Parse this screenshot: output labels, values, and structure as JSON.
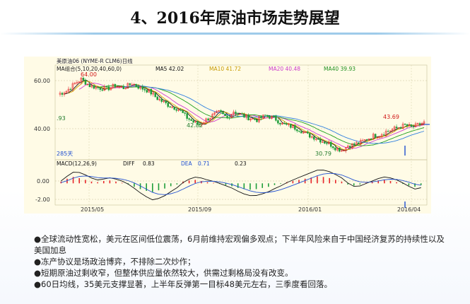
{
  "slide": {
    "title": "4、2016年原油市场走势展望"
  },
  "chart": {
    "instrument_label": "美原油06 (NYME-R CLM6)日线",
    "ma_label": "MA组合(5,10,20,40,60,0)",
    "ma5": "MA5 42.02",
    "ma10": "MA10 41.72",
    "ma20": "MA20 40.48",
    "ma40": "MA40 39.93",
    "macd_label": "MACD(12,26,9)",
    "diff_label": "DIFF",
    "diff_value": "0.83",
    "dea_label": "DEA",
    "dea_value": "0.71",
    "macd_value": "0.23",
    "volume_label": "285天",
    "annotations": {
      "high": "64.00",
      "low_mid": "42.82",
      "low": "30.79",
      "recent": "43.69",
      "left": ".93"
    },
    "colors": {
      "up": "#e8262a",
      "down": "#1f9e3a",
      "ma5": "#111111",
      "ma10": "#d4a200",
      "ma20": "#d13fd1",
      "ma40": "#20a020",
      "ma60": "#3080e0"
    }
  },
  "chart_data": {
    "type": "candlestick",
    "price_axis": {
      "ticks": [
        "60.00",
        "40.00"
      ],
      "range": [
        27,
        70
      ]
    },
    "macd_axis": {
      "ticks": [
        "0.00",
        "-2.00"
      ],
      "range": [
        -3.5,
        2.6
      ]
    },
    "x_ticks": [
      "2015/05",
      "2015/09",
      "2016/01",
      "2016/04"
    ],
    "price_path": [
      [
        0,
        57
      ],
      [
        8,
        58.5
      ],
      [
        16,
        62
      ],
      [
        22,
        64
      ],
      [
        30,
        61
      ],
      [
        38,
        60
      ],
      [
        46,
        59.5
      ],
      [
        54,
        61
      ],
      [
        62,
        60
      ],
      [
        70,
        62
      ],
      [
        78,
        60
      ],
      [
        86,
        58.5
      ],
      [
        94,
        55
      ],
      [
        104,
        52
      ],
      [
        114,
        50
      ],
      [
        122,
        46
      ],
      [
        128,
        44
      ],
      [
        134,
        42.8
      ],
      [
        140,
        45
      ],
      [
        146,
        47
      ],
      [
        152,
        48.5
      ],
      [
        160,
        46
      ],
      [
        166,
        49
      ],
      [
        172,
        47.5
      ],
      [
        180,
        46
      ],
      [
        188,
        45
      ],
      [
        196,
        47
      ],
      [
        204,
        46
      ],
      [
        212,
        43
      ],
      [
        220,
        42
      ],
      [
        228,
        40.5
      ],
      [
        236,
        38
      ],
      [
        244,
        36.5
      ],
      [
        250,
        35
      ],
      [
        256,
        34
      ],
      [
        262,
        32
      ],
      [
        268,
        30.8
      ],
      [
        274,
        33
      ],
      [
        280,
        33.5
      ],
      [
        286,
        34.5
      ],
      [
        292,
        36
      ],
      [
        298,
        37.5
      ],
      [
        304,
        38
      ],
      [
        310,
        39.5
      ],
      [
        316,
        40.5
      ],
      [
        322,
        41.5
      ],
      [
        328,
        42.5
      ],
      [
        334,
        41.5
      ],
      [
        340,
        42.5
      ],
      [
        346,
        43.7
      ]
    ],
    "macd_bars": [
      0.3,
      0.8,
      1.1,
      0.9,
      0.6,
      0.3,
      0.2,
      0.4,
      0.5,
      0.3,
      0.1,
      -0.2,
      -0.6,
      -1.0,
      -1.3,
      -1.5,
      -1.2,
      -0.9,
      -0.5,
      -0.2,
      0.3,
      0.5,
      0.6,
      0.4,
      0.2,
      0.1,
      -0.1,
      -0.3,
      -0.5,
      -0.8,
      -1.0,
      -1.1,
      -1.0,
      -0.8,
      -0.6,
      -0.3,
      -0.1,
      0.2,
      0.4,
      0.6,
      0.8,
      1.0,
      1.2,
      1.1,
      0.9,
      0.6,
      0.3,
      -0.2,
      -0.4,
      -0.2,
      0.1,
      0.3,
      0.5,
      0.6,
      0.4,
      0.2,
      -0.1,
      -0.4,
      -0.6,
      -0.3
    ]
  },
  "bullets": [
    "全球流动性宽松，美元在区间低位震荡，6月前维持宏观偏多观点；下半年风险来自于中国经济复苏的持续性以及美国加息",
    "冻产协议是场政治博弈，不排除二次炒作；",
    "短期原油过剩收窄，但整体供应量依然较大，供需过剩格局没有改变。",
    "60日均线，35美元支撑显著，上半年反弹第一目标48美元左右，三季度看回落。"
  ]
}
